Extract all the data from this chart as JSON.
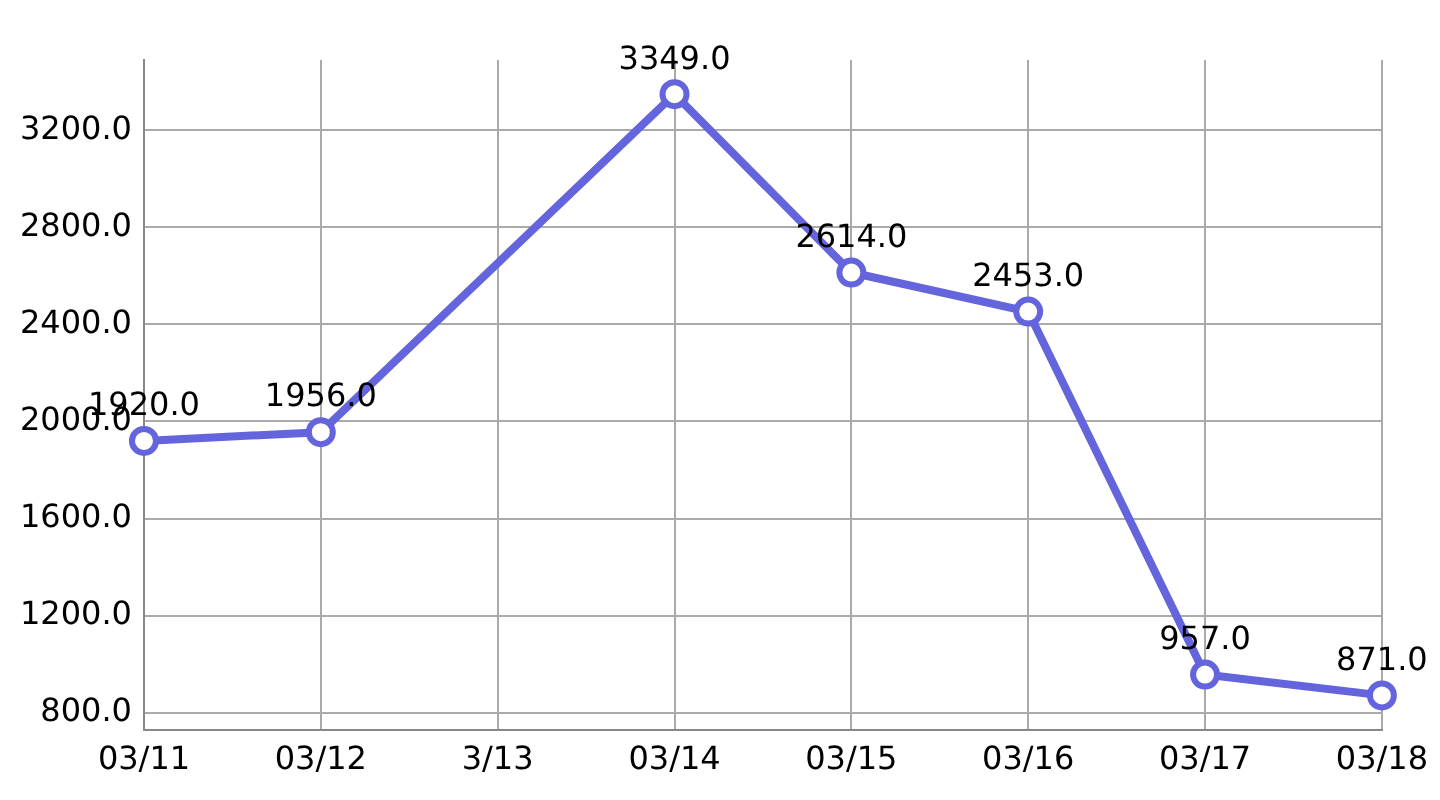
{
  "chart_data": {
    "type": "line",
    "categories": [
      "03/11",
      "03/12",
      "3/13",
      "03/14",
      "03/15",
      "03/16",
      "03/17",
      "03/18"
    ],
    "series": [
      {
        "color": "#6464dc",
        "values": [
          1920,
          1956,
          null,
          3349,
          2614,
          2453,
          957,
          871
        ],
        "value_labels": [
          "1920.0",
          "1956.0",
          null,
          "3349.0",
          "2614.0",
          "2453.0",
          "957.0",
          "871.0"
        ]
      }
    ],
    "ylim": [
      730,
      3490
    ],
    "yticks": [
      {
        "value": 800,
        "label": "800.0"
      },
      {
        "value": 1200,
        "label": "1200.0"
      },
      {
        "value": 1600,
        "label": "1600.0"
      },
      {
        "value": 2000,
        "label": "2000.0"
      },
      {
        "value": 2400,
        "label": "2400.0"
      },
      {
        "value": 2800,
        "label": "2800.0"
      },
      {
        "value": 3200,
        "label": "3200.0"
      }
    ],
    "grid": true,
    "legend": false,
    "marker": "circle",
    "line_style": "solid"
  }
}
